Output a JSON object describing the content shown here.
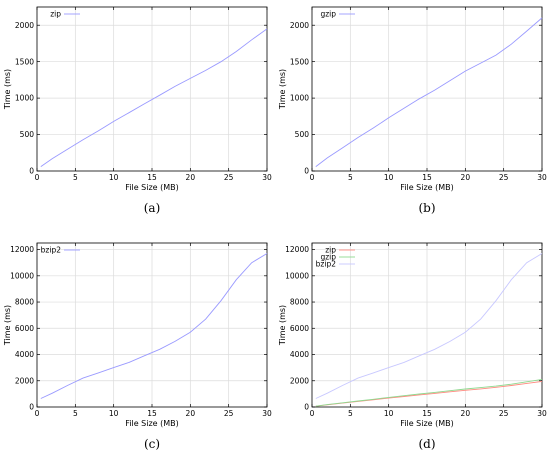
{
  "chart_data": [
    {
      "type": "line",
      "caption": "(a)",
      "xlabel": "File Size (MB)",
      "ylabel": "Time (ms)",
      "xlim": [
        0,
        30
      ],
      "ylim": [
        0,
        2250
      ],
      "xticks": [
        0,
        5,
        10,
        15,
        20,
        25,
        30
      ],
      "yticks": [
        0,
        500,
        1000,
        1500,
        2000
      ],
      "grid": true,
      "legend_position": "top-left",
      "series": [
        {
          "name": "zip",
          "color": "#9a9aff",
          "x": [
            0.5,
            2,
            4,
            6,
            8,
            10,
            12,
            14,
            16,
            18,
            20,
            22,
            24,
            26,
            28,
            30
          ],
          "y": [
            60,
            170,
            300,
            430,
            550,
            680,
            800,
            920,
            1040,
            1160,
            1270,
            1380,
            1500,
            1640,
            1800,
            1950
          ]
        }
      ]
    },
    {
      "type": "line",
      "caption": "(b)",
      "xlabel": "File Size (MB)",
      "ylabel": "Time (ms)",
      "xlim": [
        0,
        30
      ],
      "ylim": [
        0,
        2250
      ],
      "xticks": [
        0,
        5,
        10,
        15,
        20,
        25,
        30
      ],
      "yticks": [
        0,
        500,
        1000,
        1500,
        2000
      ],
      "grid": true,
      "legend_position": "top-left",
      "series": [
        {
          "name": "gzip",
          "color": "#9a9aff",
          "x": [
            0.5,
            2,
            4,
            6,
            8,
            10,
            12,
            14,
            16,
            18,
            20,
            22,
            24,
            26,
            28,
            30
          ],
          "y": [
            60,
            180,
            320,
            460,
            590,
            730,
            860,
            990,
            1110,
            1240,
            1370,
            1480,
            1590,
            1740,
            1920,
            2100
          ]
        }
      ]
    },
    {
      "type": "line",
      "caption": "(c)",
      "xlabel": "File Size (MB)",
      "ylabel": "Time (ms)",
      "xlim": [
        0,
        30
      ],
      "ylim": [
        0,
        12500
      ],
      "xticks": [
        0,
        5,
        10,
        15,
        20,
        25,
        30
      ],
      "yticks": [
        0,
        2000,
        4000,
        6000,
        8000,
        10000,
        12000
      ],
      "grid": true,
      "legend_position": "top-left",
      "series": [
        {
          "name": "bzip2",
          "color": "#9a9aff",
          "x": [
            0.5,
            2,
            4,
            6,
            8,
            10,
            12,
            14,
            16,
            18,
            20,
            22,
            24,
            26,
            28,
            30
          ],
          "y": [
            650,
            1050,
            1650,
            2200,
            2600,
            3000,
            3400,
            3900,
            4400,
            5000,
            5700,
            6700,
            8100,
            9700,
            11000,
            11700
          ]
        }
      ]
    },
    {
      "type": "line",
      "caption": "(d)",
      "xlabel": "File Size (MB)",
      "ylabel": "Time (ms)",
      "xlim": [
        0,
        30
      ],
      "ylim": [
        0,
        12500
      ],
      "xticks": [
        0,
        5,
        10,
        15,
        20,
        25,
        30
      ],
      "yticks": [
        0,
        2000,
        4000,
        6000,
        8000,
        10000,
        12000
      ],
      "grid": true,
      "legend_position": "top-left",
      "series": [
        {
          "name": "zip",
          "color": "#ff8a80",
          "x": [
            0.5,
            2,
            4,
            6,
            8,
            10,
            12,
            14,
            16,
            18,
            20,
            22,
            24,
            26,
            28,
            30
          ],
          "y": [
            60,
            170,
            300,
            430,
            550,
            680,
            800,
            920,
            1040,
            1160,
            1270,
            1380,
            1500,
            1640,
            1800,
            1950
          ]
        },
        {
          "name": "gzip",
          "color": "#8fd88f",
          "x": [
            0.5,
            2,
            4,
            6,
            8,
            10,
            12,
            14,
            16,
            18,
            20,
            22,
            24,
            26,
            28,
            30
          ],
          "y": [
            60,
            180,
            320,
            460,
            590,
            730,
            860,
            990,
            1110,
            1240,
            1370,
            1480,
            1590,
            1740,
            1920,
            2100
          ]
        },
        {
          "name": "bzip2",
          "color": "#c8c8ff",
          "x": [
            0.5,
            2,
            4,
            6,
            8,
            10,
            12,
            14,
            16,
            18,
            20,
            22,
            24,
            26,
            28,
            30
          ],
          "y": [
            650,
            1050,
            1650,
            2200,
            2600,
            3000,
            3400,
            3900,
            4400,
            5000,
            5700,
            6700,
            8100,
            9700,
            11000,
            11700
          ]
        }
      ]
    }
  ]
}
